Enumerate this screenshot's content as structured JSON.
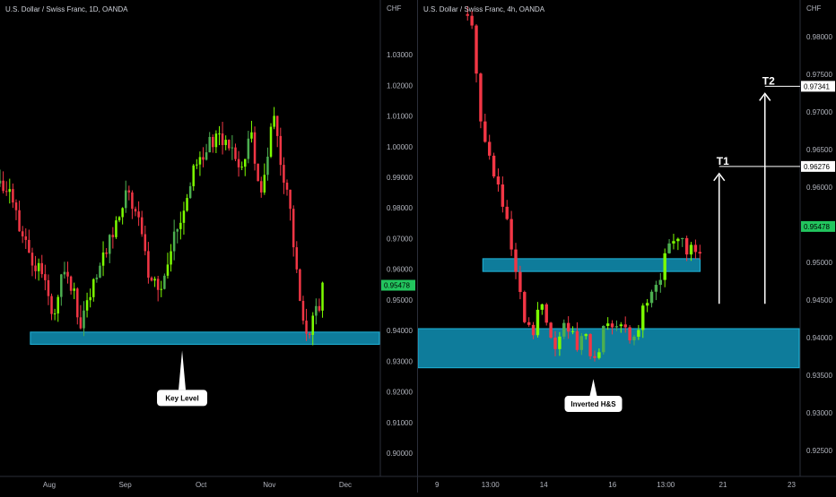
{
  "chart_data": [
    {
      "type": "candlestick",
      "title": "U.S. Dollar / Swiss Franc, 1D, OANDA",
      "currency_label": "CHF",
      "ylim": [
        0.893,
        1.042
      ],
      "y_ticks": [
        "1.03000",
        "1.02000",
        "1.01000",
        "1.00000",
        "0.99000",
        "0.98000",
        "0.97000",
        "0.96000",
        "0.95000",
        "0.94000",
        "0.93000",
        "0.92000",
        "0.91000",
        "0.90000"
      ],
      "x_ticks": [
        {
          "label": "Aug",
          "pos": 0.13
        },
        {
          "label": "Sep",
          "pos": 0.33
        },
        {
          "label": "Oct",
          "pos": 0.53
        },
        {
          "label": "Nov",
          "pos": 0.71
        },
        {
          "label": "Dec",
          "pos": 0.91
        }
      ],
      "x_range": [
        0,
        100
      ],
      "current_price": "0.95478",
      "colors": {
        "up": "#4caf50",
        "up_bright": "#7cfc00",
        "down": "#f23645",
        "zone": "#0e7c9b",
        "zone_edge": "#1fb3d8",
        "price_badge": "#22c55e"
      },
      "key_zone": {
        "y_low": 0.9355,
        "y_high": 0.9395,
        "x_start": 8,
        "x_end": 100
      },
      "annotation": {
        "text": "Key Level",
        "x": 48,
        "y": 0.918,
        "arrow_tip_y": 0.9335
      },
      "path": [
        [
          0,
          0.988
        ],
        [
          3,
          0.985
        ],
        [
          5,
          0.975
        ],
        [
          8,
          0.965
        ],
        [
          11,
          0.958
        ],
        [
          14,
          0.945
        ],
        [
          17,
          0.96
        ],
        [
          19,
          0.955
        ],
        [
          21,
          0.94
        ],
        [
          24,
          0.952
        ],
        [
          27,
          0.962
        ],
        [
          30,
          0.972
        ],
        [
          33,
          0.985
        ],
        [
          36,
          0.978
        ],
        [
          39,
          0.96
        ],
        [
          42,
          0.953
        ],
        [
          45,
          0.968
        ],
        [
          48,
          0.978
        ],
        [
          51,
          0.993
        ],
        [
          54,
          0.997
        ],
        [
          57,
          1.005
        ],
        [
          60,
          1.0
        ],
        [
          63,
          0.992
        ],
        [
          66,
          1.005
        ],
        [
          69,
          0.985
        ],
        [
          72,
          1.012
        ],
        [
          74,
          0.995
        ],
        [
          76,
          0.985
        ],
        [
          78,
          0.96
        ],
        [
          80,
          0.94
        ],
        [
          82,
          0.941
        ],
        [
          84,
          0.948
        ],
        [
          85,
          0.955
        ]
      ]
    },
    {
      "type": "candlestick",
      "title": "U.S. Dollar / Swiss Franc, 4h, OANDA",
      "currency_label": "CHF",
      "ylim": [
        0.9218,
        0.9825
      ],
      "y_ticks": [
        "0.98000",
        "0.97500",
        "0.97000",
        "0.96500",
        "0.96000",
        "0.95500",
        "0.95000",
        "0.94500",
        "0.94000",
        "0.93500",
        "0.93000",
        "0.92500"
      ],
      "x_ticks": [
        {
          "label": "9",
          "pos": 0.05
        },
        {
          "label": "13:00",
          "pos": 0.19
        },
        {
          "label": "14",
          "pos": 0.33
        },
        {
          "label": "16",
          "pos": 0.51
        },
        {
          "label": "13:00",
          "pos": 0.65
        },
        {
          "label": "21",
          "pos": 0.8
        },
        {
          "label": "23",
          "pos": 0.98
        }
      ],
      "x_range": [
        0,
        100
      ],
      "current_price": "0.95478",
      "colors": {
        "up": "#4caf50",
        "up_bright": "#7cfc00",
        "down": "#f23645",
        "zone": "#0e7c9b",
        "zone_edge": "#1fb3d8",
        "price_badge": "#22c55e",
        "target": "#ffffff"
      },
      "zones": [
        {
          "name": "resistance-zone",
          "y_low": 0.9488,
          "y_high": 0.9505,
          "x_start": 17,
          "x_end": 74
        },
        {
          "name": "support-zone",
          "y_low": 0.936,
          "y_high": 0.9412,
          "x_start": 0,
          "x_end": 100
        }
      ],
      "targets": [
        {
          "label": "T1",
          "value": "0.96276",
          "price": 0.96276,
          "x": 79
        },
        {
          "label": "T2",
          "value": "0.97341",
          "price": 0.97341,
          "x": 91
        }
      ],
      "annotation": {
        "text": "Inverted H&S",
        "x": 46,
        "y": 0.9312,
        "arrow_tip_y": 0.9345
      },
      "path": [
        [
          13,
          0.983
        ],
        [
          15,
          0.979
        ],
        [
          16,
          0.97
        ],
        [
          18,
          0.965
        ],
        [
          20,
          0.962
        ],
        [
          22,
          0.958
        ],
        [
          24,
          0.953
        ],
        [
          26,
          0.947
        ],
        [
          28,
          0.942
        ],
        [
          30,
          0.94
        ],
        [
          32,
          0.945
        ],
        [
          34,
          0.942
        ],
        [
          36,
          0.938
        ],
        [
          38,
          0.941
        ],
        [
          40,
          0.942
        ],
        [
          42,
          0.939
        ],
        [
          44,
          0.94
        ],
        [
          46,
          0.937
        ],
        [
          48,
          0.94
        ],
        [
          50,
          0.942
        ],
        [
          52,
          0.942
        ],
        [
          54,
          0.941
        ],
        [
          56,
          0.94
        ],
        [
          58,
          0.942
        ],
        [
          60,
          0.945
        ],
        [
          62,
          0.946
        ],
        [
          64,
          0.949
        ],
        [
          66,
          0.952
        ],
        [
          68,
          0.953
        ],
        [
          70,
          0.952
        ],
        [
          72,
          0.951
        ],
        [
          74,
          0.952
        ],
        [
          75,
          0.955
        ]
      ]
    }
  ]
}
